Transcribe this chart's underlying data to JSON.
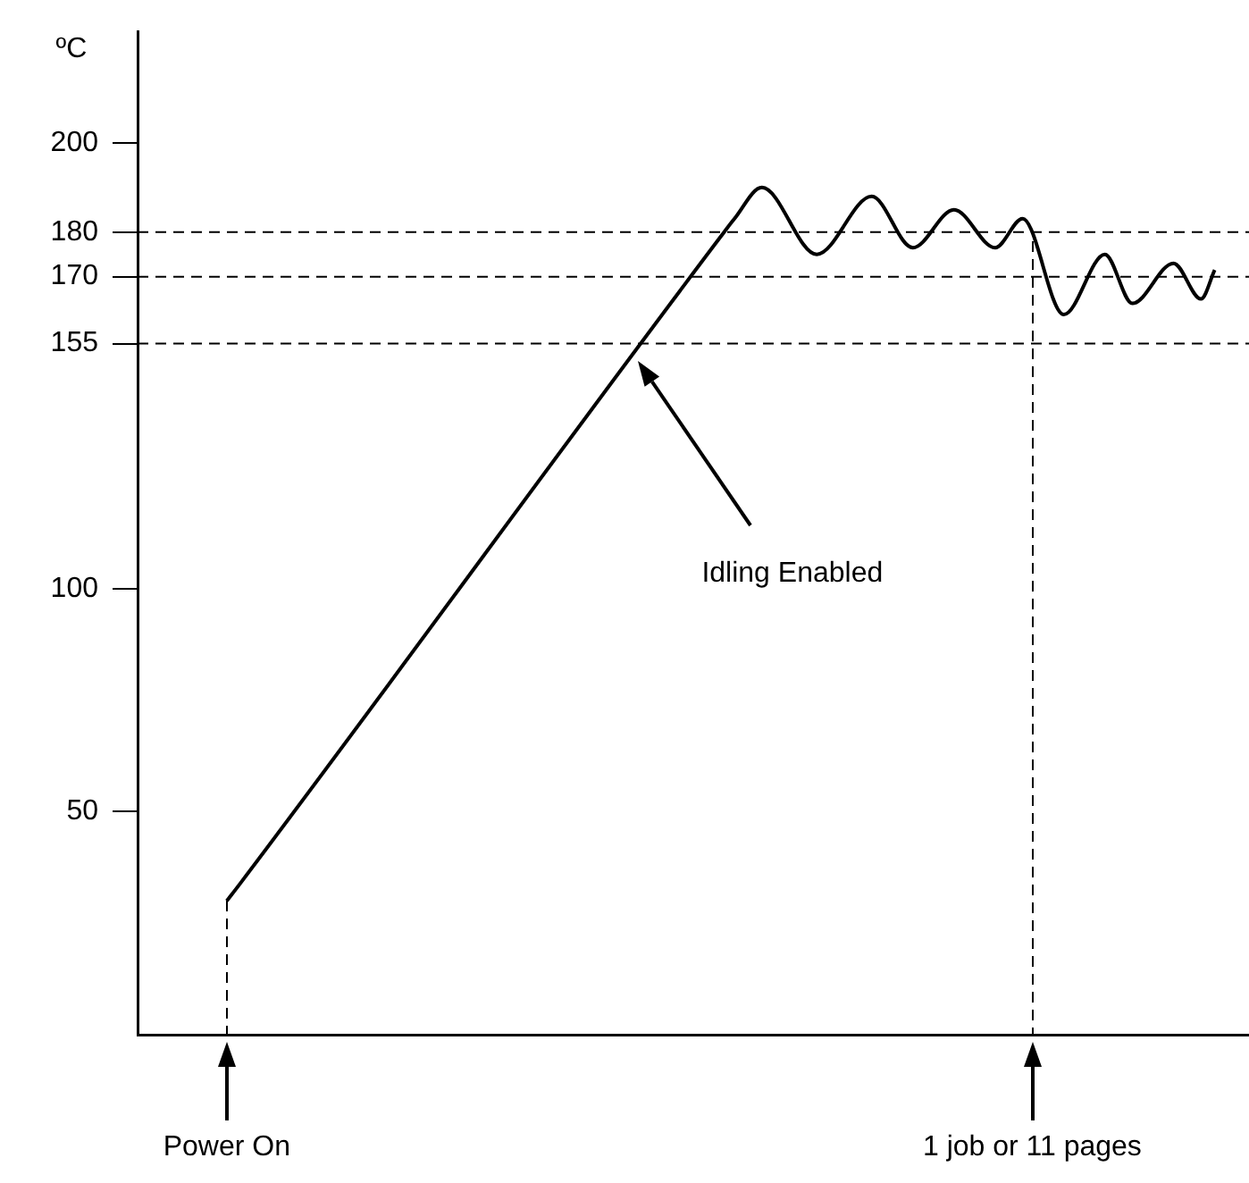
{
  "chart_data": {
    "type": "line",
    "ylabel": "ºC",
    "categories": [
      null,
      null,
      null,
      null,
      null,
      null,
      null,
      null,
      null,
      null,
      null,
      null,
      null,
      null,
      null,
      null,
      null,
      null,
      null,
      null,
      null,
      null,
      null,
      null,
      null,
      null,
      null,
      null,
      null,
      null,
      null,
      null,
      null,
      null,
      null,
      null,
      null,
      null,
      null,
      null,
      null,
      null,
      null,
      null,
      null,
      null,
      null,
      null,
      null,
      null,
      null,
      null,
      null,
      null,
      null,
      null,
      null,
      null,
      null,
      null,
      null,
      null,
      null,
      null,
      null,
      null,
      null,
      null,
      null,
      null,
      null,
      null,
      null,
      null,
      null,
      null,
      null,
      null,
      null,
      null,
      null
    ],
    "series": [
      {
        "color": "#000000",
        "values": [
          null,
          null,
          null,
          null,
          null,
          null,
          30,
          34,
          null,
          null,
          null,
          null,
          null,
          null,
          null,
          null,
          null,
          null,
          null,
          null,
          null,
          null,
          null,
          null,
          null,
          null,
          null,
          null,
          null,
          null,
          null,
          null,
          null,
          null,
          null,
          null,
          null,
          null,
          null,
          null,
          null,
          null,
          179,
          183,
          null,
          190,
          null,
          null,
          null,
          175,
          null,
          null,
          null,
          188,
          null,
          null,
          176.5,
          null,
          null,
          185,
          null,
          null,
          176.5,
          null,
          183,
          null,
          null,
          161.5,
          null,
          null,
          175,
          null,
          164,
          null,
          null,
          173,
          null,
          165,
          171.5,
          null,
          null
        ]
      }
    ],
    "ylim": [
      0,
      225
    ],
    "yticks": [
      50,
      100,
      155,
      170,
      180,
      200
    ],
    "grid": false,
    "legend": false,
    "marker": "none",
    "line_style": "solid",
    "ref_lines": [
      {
        "axis": "y",
        "value": 180,
        "line_style": "dashed"
      },
      {
        "axis": "y",
        "value": 170,
        "line_style": "dashed"
      },
      {
        "axis": "y",
        "value": 155,
        "line_style": "dashed"
      }
    ],
    "annotations": [
      "Idling Enabled",
      "Power On",
      "1 job or 11 pages"
    ]
  }
}
